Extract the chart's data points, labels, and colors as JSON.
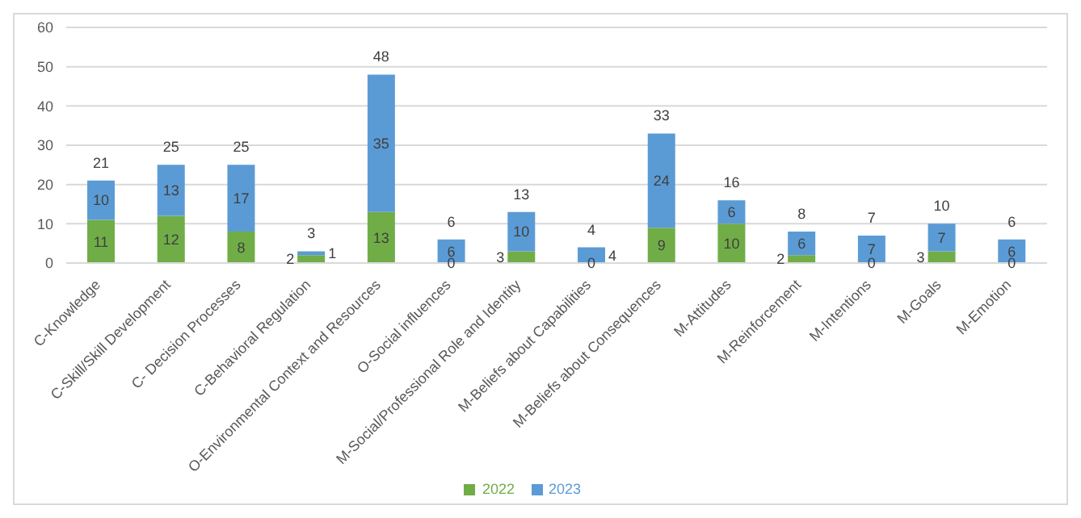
{
  "chart_data": {
    "type": "bar",
    "stacked": true,
    "categories": [
      "C-Knowledge",
      "C-Skill/Skill Development",
      "C- Decision Processes",
      "C-Behavioral Regulation",
      "O-Environmental Context and Resources",
      "O-Social influences",
      "M-Social/Professional Role and Identity",
      "M-Beliefs about Capabilities",
      "M-Beliefs about Consequences",
      "M-Attitudes",
      "M-Reinforcement",
      "M-Intentions",
      "M-Goals",
      "M-Emotion"
    ],
    "series": [
      {
        "name": "2022",
        "color": "#70ad47",
        "values": [
          11,
          12,
          8,
          2,
          13,
          0,
          3,
          0,
          9,
          10,
          2,
          0,
          3,
          0
        ]
      },
      {
        "name": "2023",
        "color": "#5b9bd5",
        "values": [
          10,
          13,
          17,
          1,
          35,
          6,
          10,
          4,
          24,
          6,
          6,
          7,
          7,
          6
        ]
      }
    ],
    "totals": [
      "21",
      "25",
      "25",
      "3",
      "48",
      "6",
      "13",
      "4",
      "33",
      "16",
      "8",
      "7",
      "10",
      "6"
    ],
    "ylim": [
      0,
      60
    ],
    "yticks": [
      0,
      10,
      20,
      30,
      40,
      50,
      60
    ],
    "grid": "y",
    "legend": "bottom",
    "data_labels": true
  }
}
